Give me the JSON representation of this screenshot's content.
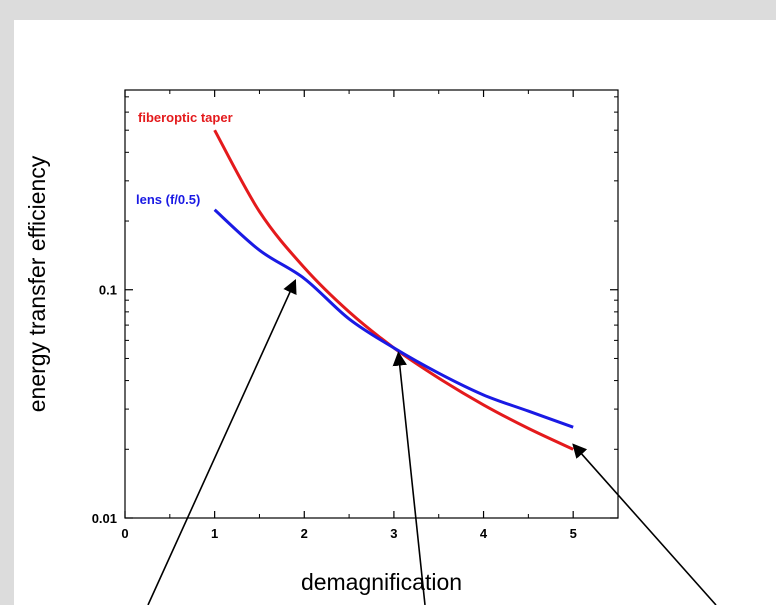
{
  "chart_data": {
    "type": "line",
    "xlabel": "demagnification",
    "ylabel": "energy transfer efficiency",
    "xlim": [
      0,
      5.5
    ],
    "ylim": [
      0.01,
      0.75
    ],
    "yscale": "log",
    "grid": false,
    "x_ticks": [
      "0",
      "1",
      "2",
      "3",
      "4",
      "5"
    ],
    "y_ticks": [
      {
        "value": 0.1,
        "label": "0.1"
      },
      {
        "value": 0.01,
        "label": "0.01"
      }
    ],
    "series": [
      {
        "name": "fiberoptic taper",
        "color": "#e41a1c",
        "x": [
          1.0,
          1.5,
          2.0,
          2.5,
          3.0,
          3.5,
          4.0,
          4.5,
          5.0
        ],
        "y": [
          0.5,
          0.22,
          0.125,
          0.08,
          0.0556,
          0.041,
          0.0313,
          0.0247,
          0.02
        ]
      },
      {
        "name": "lens (f/0.5)",
        "color": "#1a1ae4",
        "x": [
          1.0,
          1.5,
          2.0,
          2.5,
          3.0,
          3.5,
          4.0,
          4.5,
          5.0
        ],
        "y": [
          0.224,
          0.149,
          0.112,
          0.0745,
          0.0556,
          0.0431,
          0.0346,
          0.0294,
          0.025
        ]
      }
    ],
    "arrows": [
      {
        "tip": [
          1.9,
          0.11
        ]
      },
      {
        "tip": [
          3.05,
          0.053
        ]
      },
      {
        "tip": [
          5.0,
          0.021
        ]
      }
    ]
  }
}
